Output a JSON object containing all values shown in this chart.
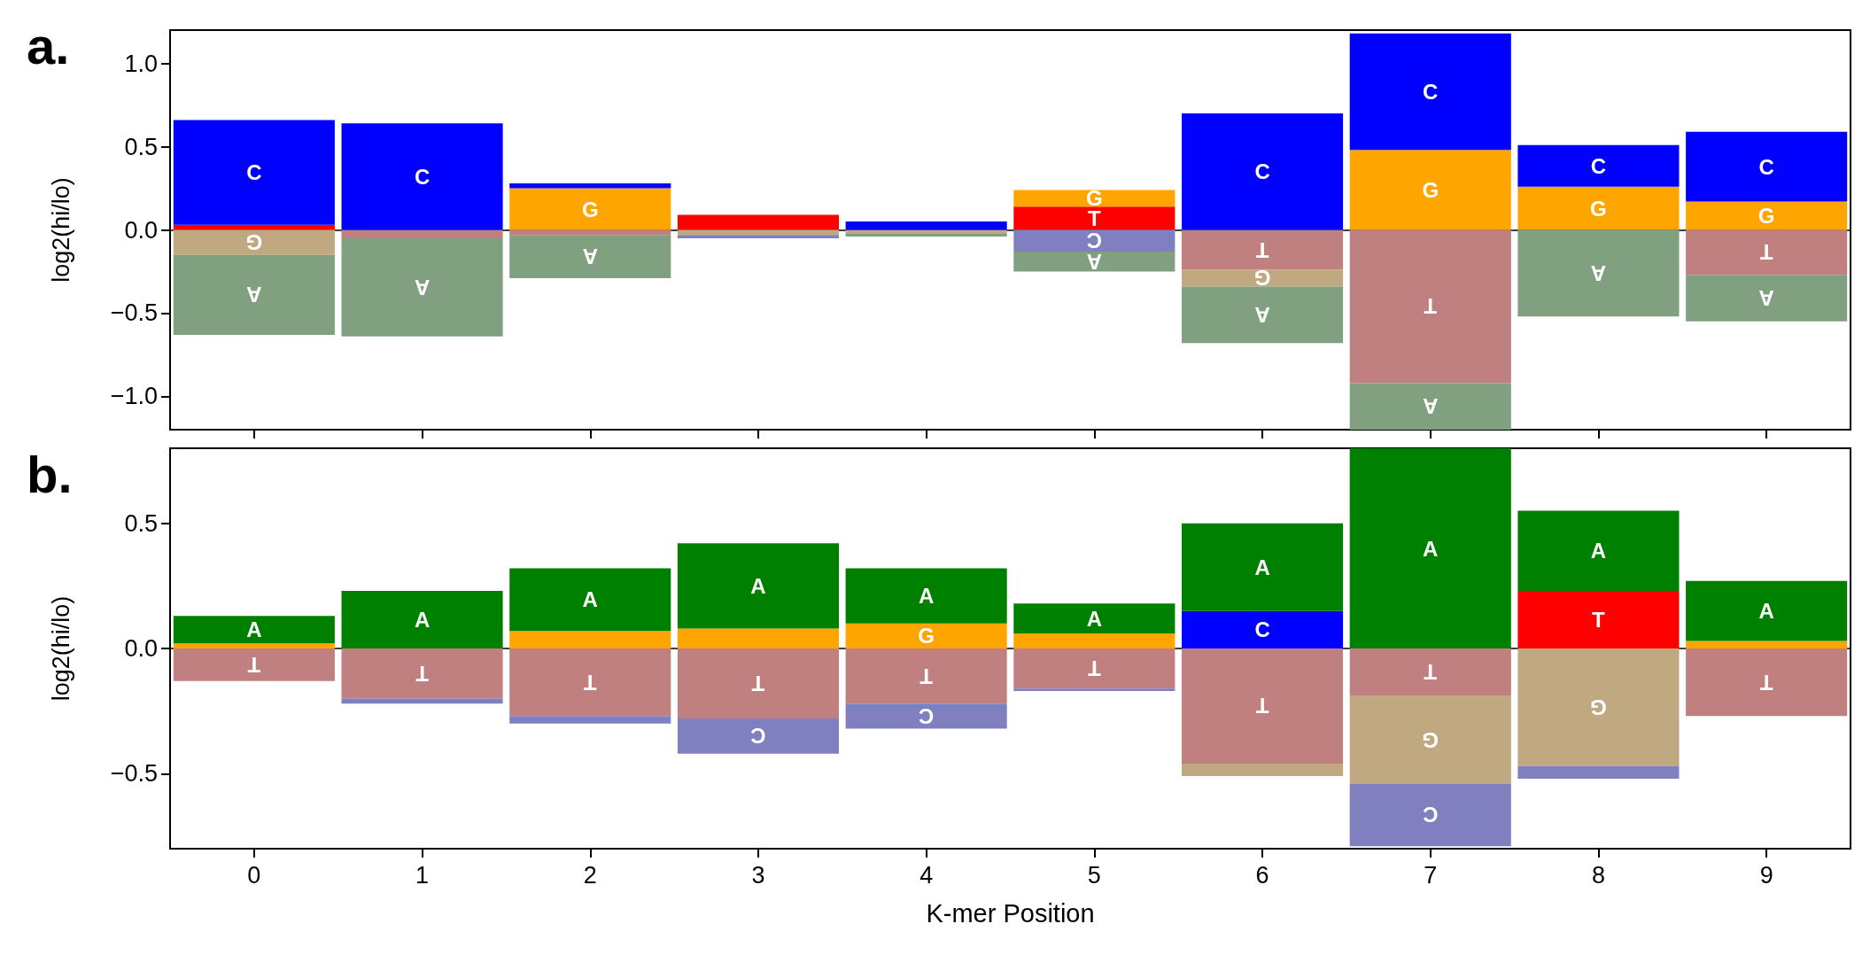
{
  "chart_data": [
    {
      "type": "bar",
      "stacked": true,
      "ylabel": "log2(hi/lo)",
      "annotations": [
        "a."
      ],
      "categories": [
        "0",
        "1",
        "2",
        "3",
        "4",
        "5",
        "6",
        "7",
        "8",
        "9"
      ],
      "ylim": [
        -1.2,
        1.2
      ],
      "yticks": [
        {
          "value": -1,
          "label": "−1.0"
        },
        {
          "value": -0.5,
          "label": "−0.5"
        },
        {
          "value": 0,
          "label": "0.0"
        },
        {
          "value": 0.5,
          "label": "0.5"
        },
        {
          "value": 1,
          "label": "1.0"
        }
      ],
      "tick_labels": "y",
      "series": [
        {
          "name": "T",
          "values": [
            0.03,
            -0.05,
            -0.03,
            0.09,
            null,
            0.14,
            -0.24,
            -0.92,
            null,
            -0.27
          ],
          "colors": [
            "#ff0000",
            "#c08080",
            "#c08080",
            "#ff0000",
            null,
            "#ff0000",
            "#c08080",
            "#c08080",
            null,
            "#c08080"
          ]
        },
        {
          "name": "G",
          "values": [
            -0.15,
            null,
            0.25,
            -0.03,
            -0.02,
            0.1,
            -0.1,
            0.48,
            0.26,
            0.17
          ],
          "colors": [
            "#c0a880",
            null,
            "#ffa500",
            "#c0a880",
            "#c0a880",
            "#ffa500",
            "#c0a880",
            "#ffa500",
            "#ffa500",
            "#ffa500"
          ]
        },
        {
          "name": "C",
          "values": [
            0.63,
            0.64,
            0.03,
            -0.02,
            0.05,
            -0.13,
            0.7,
            0.7,
            0.25,
            0.42
          ],
          "colors": [
            "#0000ff",
            "#0000ff",
            "#0000ff",
            "#8080c0",
            "#0000ff",
            "#8080c0",
            "#0000ff",
            "#0000ff",
            "#0000ff",
            "#0000ff"
          ]
        },
        {
          "name": "A",
          "values": [
            -0.48,
            -0.59,
            -0.26,
            null,
            -0.02,
            -0.12,
            -0.34,
            -0.28,
            -0.52,
            -0.28
          ],
          "colors": [
            "#80a080",
            "#80a080",
            "#80a080",
            null,
            "#80a080",
            "#80a080",
            "#80a080",
            "#80a080",
            "#80a080",
            "#80a080"
          ]
        }
      ]
    },
    {
      "type": "bar",
      "stacked": true,
      "ylabel": "log2(hi/lo)",
      "xlabel": "K-mer Position",
      "annotations": [
        "b."
      ],
      "categories": [
        "0",
        "1",
        "2",
        "3",
        "4",
        "5",
        "6",
        "7",
        "8",
        "9"
      ],
      "ylim": [
        -0.8,
        0.8
      ],
      "yticks": [
        {
          "value": -0.5,
          "label": "−0.5"
        },
        {
          "value": 0,
          "label": "0.0"
        },
        {
          "value": 0.5,
          "label": "0.5"
        }
      ],
      "series": [
        {
          "name": "T",
          "values": [
            -0.13,
            -0.2,
            -0.27,
            -0.28,
            -0.22,
            -0.16,
            -0.46,
            -0.19,
            0.23,
            -0.27
          ],
          "colors": [
            "#c08080",
            "#c08080",
            "#c08080",
            "#c08080",
            "#c08080",
            "#c08080",
            "#c08080",
            "#c08080",
            "#ff0000",
            "#c08080"
          ]
        },
        {
          "name": "G",
          "values": [
            0.02,
            null,
            0.07,
            0.08,
            0.1,
            0.06,
            -0.05,
            -0.35,
            -0.47,
            0.03
          ],
          "colors": [
            "#ffa500",
            null,
            "#ffa500",
            "#ffa500",
            "#ffa500",
            "#ffa500",
            "#c0a880",
            "#c0a880",
            "#c0a880",
            "#ffa500"
          ]
        },
        {
          "name": "C",
          "values": [
            null,
            -0.02,
            -0.03,
            -0.14,
            -0.1,
            -0.01,
            0.15,
            -0.25,
            -0.05,
            null
          ],
          "colors": [
            null,
            "#8080c0",
            "#8080c0",
            "#8080c0",
            "#8080c0",
            "#8080c0",
            "#0000ff",
            "#8080c0",
            "#8080c0",
            null
          ]
        },
        {
          "name": "A",
          "values": [
            0.11,
            0.23,
            0.25,
            0.34,
            0.22,
            0.12,
            0.35,
            0.8,
            0.32,
            0.24
          ],
          "colors": [
            "#008000",
            "#008000",
            "#008000",
            "#008000",
            "#008000",
            "#008000",
            "#008000",
            "#008000",
            "#008000",
            "#008000"
          ]
        }
      ]
    }
  ]
}
